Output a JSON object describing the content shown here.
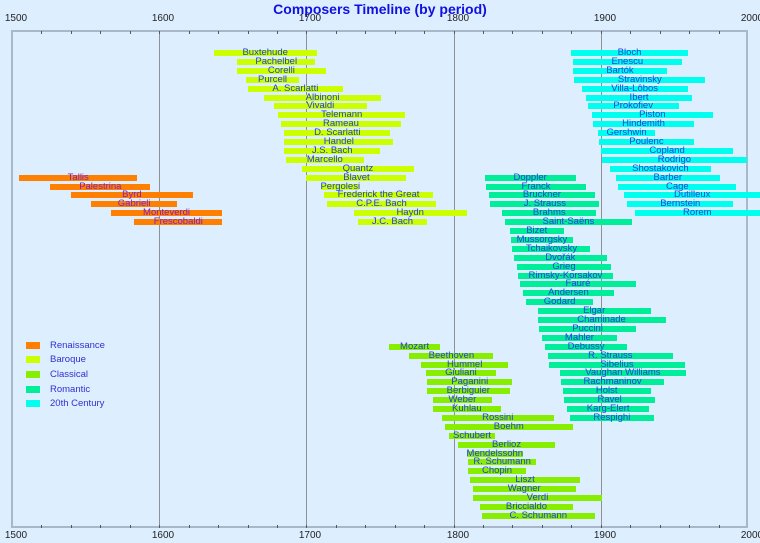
{
  "chart_data": {
    "type": "timeline",
    "title": "Composers Timeline (by period)",
    "xlabel": "",
    "ylabel": "",
    "xlim": [
      1500,
      2000
    ],
    "x_ticks": [
      1500,
      1600,
      1700,
      1800,
      1900,
      2000
    ],
    "grid": "vertical at centuries",
    "legend_position": "lower-left inside",
    "periods": [
      {
        "name": "Renaissance",
        "color": "#ff7f00"
      },
      {
        "name": "Baroque",
        "color": "#ccff00"
      },
      {
        "name": "Classical",
        "color": "#88ee00"
      },
      {
        "name": "Romantic",
        "color": "#00ee99"
      },
      {
        "name": "20th Century",
        "color": "#00ffee"
      }
    ],
    "composers": [
      {
        "name": "Buxtehude",
        "period": "Baroque",
        "born": 1637,
        "died": 1707,
        "row": 0
      },
      {
        "name": "Pachelbel",
        "period": "Baroque",
        "born": 1653,
        "died": 1706,
        "row": 1
      },
      {
        "name": "Corelli",
        "period": "Baroque",
        "born": 1653,
        "died": 1713,
        "row": 2
      },
      {
        "name": "Purcell",
        "period": "Baroque",
        "born": 1659,
        "died": 1695,
        "row": 3
      },
      {
        "name": "A. Scarlatti",
        "period": "Baroque",
        "born": 1660,
        "died": 1725,
        "row": 4
      },
      {
        "name": "Albinoni",
        "period": "Baroque",
        "born": 1671,
        "died": 1751,
        "row": 5
      },
      {
        "name": "Vivaldi",
        "period": "Baroque",
        "born": 1678,
        "died": 1741,
        "row": 6
      },
      {
        "name": "Telemann",
        "period": "Baroque",
        "born": 1681,
        "died": 1767,
        "row": 7
      },
      {
        "name": "Rameau",
        "period": "Baroque",
        "born": 1683,
        "died": 1764,
        "row": 8
      },
      {
        "name": "D. Scarlatti",
        "period": "Baroque",
        "born": 1685,
        "died": 1757,
        "row": 9
      },
      {
        "name": "Handel",
        "period": "Baroque",
        "born": 1685,
        "died": 1759,
        "row": 10
      },
      {
        "name": "J.S. Bach",
        "period": "Baroque",
        "born": 1685,
        "died": 1750,
        "row": 11
      },
      {
        "name": "Marcello",
        "period": "Baroque",
        "born": 1686,
        "died": 1739,
        "row": 12
      },
      {
        "name": "Quantz",
        "period": "Baroque",
        "born": 1697,
        "died": 1773,
        "row": 13
      },
      {
        "name": "Blavet",
        "period": "Baroque",
        "born": 1700,
        "died": 1768,
        "row": 14
      },
      {
        "name": "Pergolesi",
        "period": "Baroque",
        "born": 1710,
        "died": 1736,
        "row": 15
      },
      {
        "name": "Frederick the Great",
        "period": "Baroque",
        "born": 1712,
        "died": 1786,
        "row": 16
      },
      {
        "name": "C.P.E. Bach",
        "period": "Baroque",
        "born": 1714,
        "died": 1788,
        "row": 17
      },
      {
        "name": "Haydn",
        "period": "Baroque",
        "born": 1732,
        "died": 1809,
        "row": 18
      },
      {
        "name": "J.C. Bach",
        "period": "Baroque",
        "born": 1735,
        "died": 1782,
        "row": 19
      },
      {
        "name": "Tallis",
        "period": "Renaissance",
        "born": 1505,
        "died": 1585,
        "row": 14
      },
      {
        "name": "Palestrina",
        "period": "Renaissance",
        "born": 1526,
        "died": 1594,
        "row": 15
      },
      {
        "name": "Byrd",
        "period": "Renaissance",
        "born": 1540,
        "died": 1623,
        "row": 16
      },
      {
        "name": "Gabrieli",
        "period": "Renaissance",
        "born": 1554,
        "died": 1612,
        "row": 17
      },
      {
        "name": "Monteverdi",
        "period": "Renaissance",
        "born": 1567,
        "died": 1643,
        "row": 18
      },
      {
        "name": "Frescobaldi",
        "period": "Renaissance",
        "born": 1583,
        "died": 1643,
        "row": 19
      },
      {
        "name": "Bloch",
        "period": "20th Century",
        "born": 1880,
        "died": 1959,
        "row": 0
      },
      {
        "name": "Enescu",
        "period": "20th Century",
        "born": 1881,
        "died": 1955,
        "row": 1
      },
      {
        "name": "Bartók",
        "period": "20th Century",
        "born": 1881,
        "died": 1945,
        "row": 2
      },
      {
        "name": "Stravinsky",
        "period": "20th Century",
        "born": 1882,
        "died": 1971,
        "row": 3
      },
      {
        "name": "Villa-Lôbos",
        "period": "20th Century",
        "born": 1887,
        "died": 1959,
        "row": 4
      },
      {
        "name": "Ibert",
        "period": "20th Century",
        "born": 1890,
        "died": 1962,
        "row": 5
      },
      {
        "name": "Prokofiev",
        "period": "20th Century",
        "born": 1891,
        "died": 1953,
        "row": 6
      },
      {
        "name": "Piston",
        "period": "20th Century",
        "born": 1894,
        "died": 1976,
        "row": 7
      },
      {
        "name": "Hindemith",
        "period": "20th Century",
        "born": 1895,
        "died": 1963,
        "row": 8
      },
      {
        "name": "Gershwin",
        "period": "20th Century",
        "born": 1898,
        "died": 1937,
        "row": 9
      },
      {
        "name": "Poulenc",
        "period": "20th Century",
        "born": 1899,
        "died": 1963,
        "row": 10
      },
      {
        "name": "Copland",
        "period": "20th Century",
        "born": 1900,
        "died": 1990,
        "row": 11
      },
      {
        "name": "Rodrigo",
        "period": "20th Century",
        "born": 1901,
        "died": 1999,
        "row": 12
      },
      {
        "name": "Shostakovich",
        "period": "20th Century",
        "born": 1906,
        "died": 1975,
        "row": 13
      },
      {
        "name": "Barber",
        "period": "20th Century",
        "born": 1910,
        "died": 1981,
        "row": 14
      },
      {
        "name": "Cage",
        "period": "20th Century",
        "born": 1912,
        "died": 1992,
        "row": 15
      },
      {
        "name": "Dutilleux",
        "period": "20th Century",
        "born": 1916,
        "died": 2013,
        "row": 16
      },
      {
        "name": "Bernstein",
        "period": "20th Century",
        "born": 1918,
        "died": 1990,
        "row": 17
      },
      {
        "name": "Rorem",
        "period": "20th Century",
        "born": 1923,
        "died": 2022,
        "row": 18
      },
      {
        "name": "Doppler",
        "period": "Romantic",
        "born": 1821,
        "died": 1883,
        "row": 14
      },
      {
        "name": "Franck",
        "period": "Romantic",
        "born": 1822,
        "died": 1890,
        "row": 15
      },
      {
        "name": "Bruckner",
        "period": "Romantic",
        "born": 1824,
        "died": 1896,
        "row": 16
      },
      {
        "name": "J. Strauss",
        "period": "Romantic",
        "born": 1825,
        "died": 1899,
        "row": 17
      },
      {
        "name": "Brahms",
        "period": "Romantic",
        "born": 1833,
        "died": 1897,
        "row": 18
      },
      {
        "name": "Saint-Saëns",
        "period": "Romantic",
        "born": 1835,
        "died": 1921,
        "row": 19
      },
      {
        "name": "Bizet",
        "period": "Romantic",
        "born": 1838,
        "died": 1875,
        "row": 20
      },
      {
        "name": "Mussorgsky",
        "period": "Romantic",
        "born": 1839,
        "died": 1881,
        "row": 21
      },
      {
        "name": "Tchaikovsky",
        "period": "Romantic",
        "born": 1840,
        "died": 1893,
        "row": 22
      },
      {
        "name": "Dvořák",
        "period": "Romantic",
        "born": 1841,
        "died": 1904,
        "row": 23
      },
      {
        "name": "Grieg",
        "period": "Romantic",
        "born": 1843,
        "died": 1907,
        "row": 24
      },
      {
        "name": "Rimsky-Korsakov",
        "period": "Romantic",
        "born": 1844,
        "died": 1908,
        "row": 25
      },
      {
        "name": "Fauré",
        "period": "Romantic",
        "born": 1845,
        "died": 1924,
        "row": 26
      },
      {
        "name": "Andersen",
        "period": "Romantic",
        "born": 1847,
        "died": 1909,
        "row": 27
      },
      {
        "name": "Godard",
        "period": "Romantic",
        "born": 1849,
        "died": 1895,
        "row": 28
      },
      {
        "name": "Elgar",
        "period": "Romantic",
        "born": 1857,
        "died": 1934,
        "row": 29
      },
      {
        "name": "Chaminade",
        "period": "Romantic",
        "born": 1857,
        "died": 1944,
        "row": 30
      },
      {
        "name": "Puccini",
        "period": "Romantic",
        "born": 1858,
        "died": 1924,
        "row": 31
      },
      {
        "name": "Mahler",
        "period": "Romantic",
        "born": 1860,
        "died": 1911,
        "row": 32
      },
      {
        "name": "Debussy",
        "period": "Romantic",
        "born": 1862,
        "died": 1918,
        "row": 33
      },
      {
        "name": "R. Strauss",
        "period": "Romantic",
        "born": 1864,
        "died": 1949,
        "row": 34
      },
      {
        "name": "Sibelius",
        "period": "Romantic",
        "born": 1865,
        "died": 1957,
        "row": 35
      },
      {
        "name": "Vaughan Williams",
        "period": "Romantic",
        "born": 1872,
        "died": 1958,
        "row": 36
      },
      {
        "name": "Rachmaninov",
        "period": "Romantic",
        "born": 1873,
        "died": 1943,
        "row": 37
      },
      {
        "name": "Holst",
        "period": "Romantic",
        "born": 1874,
        "died": 1934,
        "row": 38
      },
      {
        "name": "Ravel",
        "period": "Romantic",
        "born": 1875,
        "died": 1937,
        "row": 39
      },
      {
        "name": "Karg-Elert",
        "period": "Romantic",
        "born": 1877,
        "died": 1933,
        "row": 40
      },
      {
        "name": "Respighi",
        "period": "Romantic",
        "born": 1879,
        "died": 1936,
        "row": 41
      },
      {
        "name": "Mozart",
        "period": "Classical",
        "born": 1756,
        "died": 1791,
        "row": 33
      },
      {
        "name": "Beethoven",
        "period": "Classical",
        "born": 1770,
        "died": 1827,
        "row": 34
      },
      {
        "name": "Hummel",
        "period": "Classical",
        "born": 1778,
        "died": 1837,
        "row": 35
      },
      {
        "name": "Giuliani",
        "period": "Classical",
        "born": 1781,
        "died": 1829,
        "row": 36
      },
      {
        "name": "Paganini",
        "period": "Classical",
        "born": 1782,
        "died": 1840,
        "row": 37
      },
      {
        "name": "Berbiguier",
        "period": "Classical",
        "born": 1782,
        "died": 1838,
        "row": 38
      },
      {
        "name": "Weber",
        "period": "Classical",
        "born": 1786,
        "died": 1826,
        "row": 39
      },
      {
        "name": "Kuhlau",
        "period": "Classical",
        "born": 1786,
        "died": 1832,
        "row": 40
      },
      {
        "name": "Rossini",
        "period": "Classical",
        "born": 1792,
        "died": 1868,
        "row": 41
      },
      {
        "name": "Boehm",
        "period": "Classical",
        "born": 1794,
        "died": 1881,
        "row": 42
      },
      {
        "name": "Schubert",
        "period": "Classical",
        "born": 1797,
        "died": 1828,
        "row": 43
      },
      {
        "name": "Berlioz",
        "period": "Classical",
        "born": 1803,
        "died": 1869,
        "row": 44
      },
      {
        "name": "Mendelssohn",
        "period": "Classical",
        "born": 1809,
        "died": 1847,
        "row": 45
      },
      {
        "name": "R. Schumann",
        "period": "Classical",
        "born": 1810,
        "died": 1856,
        "row": 46
      },
      {
        "name": "Chopin",
        "period": "Classical",
        "born": 1810,
        "died": 1849,
        "row": 47
      },
      {
        "name": "Liszt",
        "period": "Classical",
        "born": 1811,
        "died": 1886,
        "row": 48
      },
      {
        "name": "Wagner",
        "period": "Classical",
        "born": 1813,
        "died": 1883,
        "row": 49
      },
      {
        "name": "Verdi",
        "period": "Classical",
        "born": 1813,
        "died": 1901,
        "row": 50
      },
      {
        "name": "Briccialdo",
        "period": "Classical",
        "born": 1818,
        "died": 1881,
        "row": 51
      },
      {
        "name": "C. Schumann",
        "period": "Classical",
        "born": 1819,
        "died": 1896,
        "row": 52
      }
    ]
  }
}
